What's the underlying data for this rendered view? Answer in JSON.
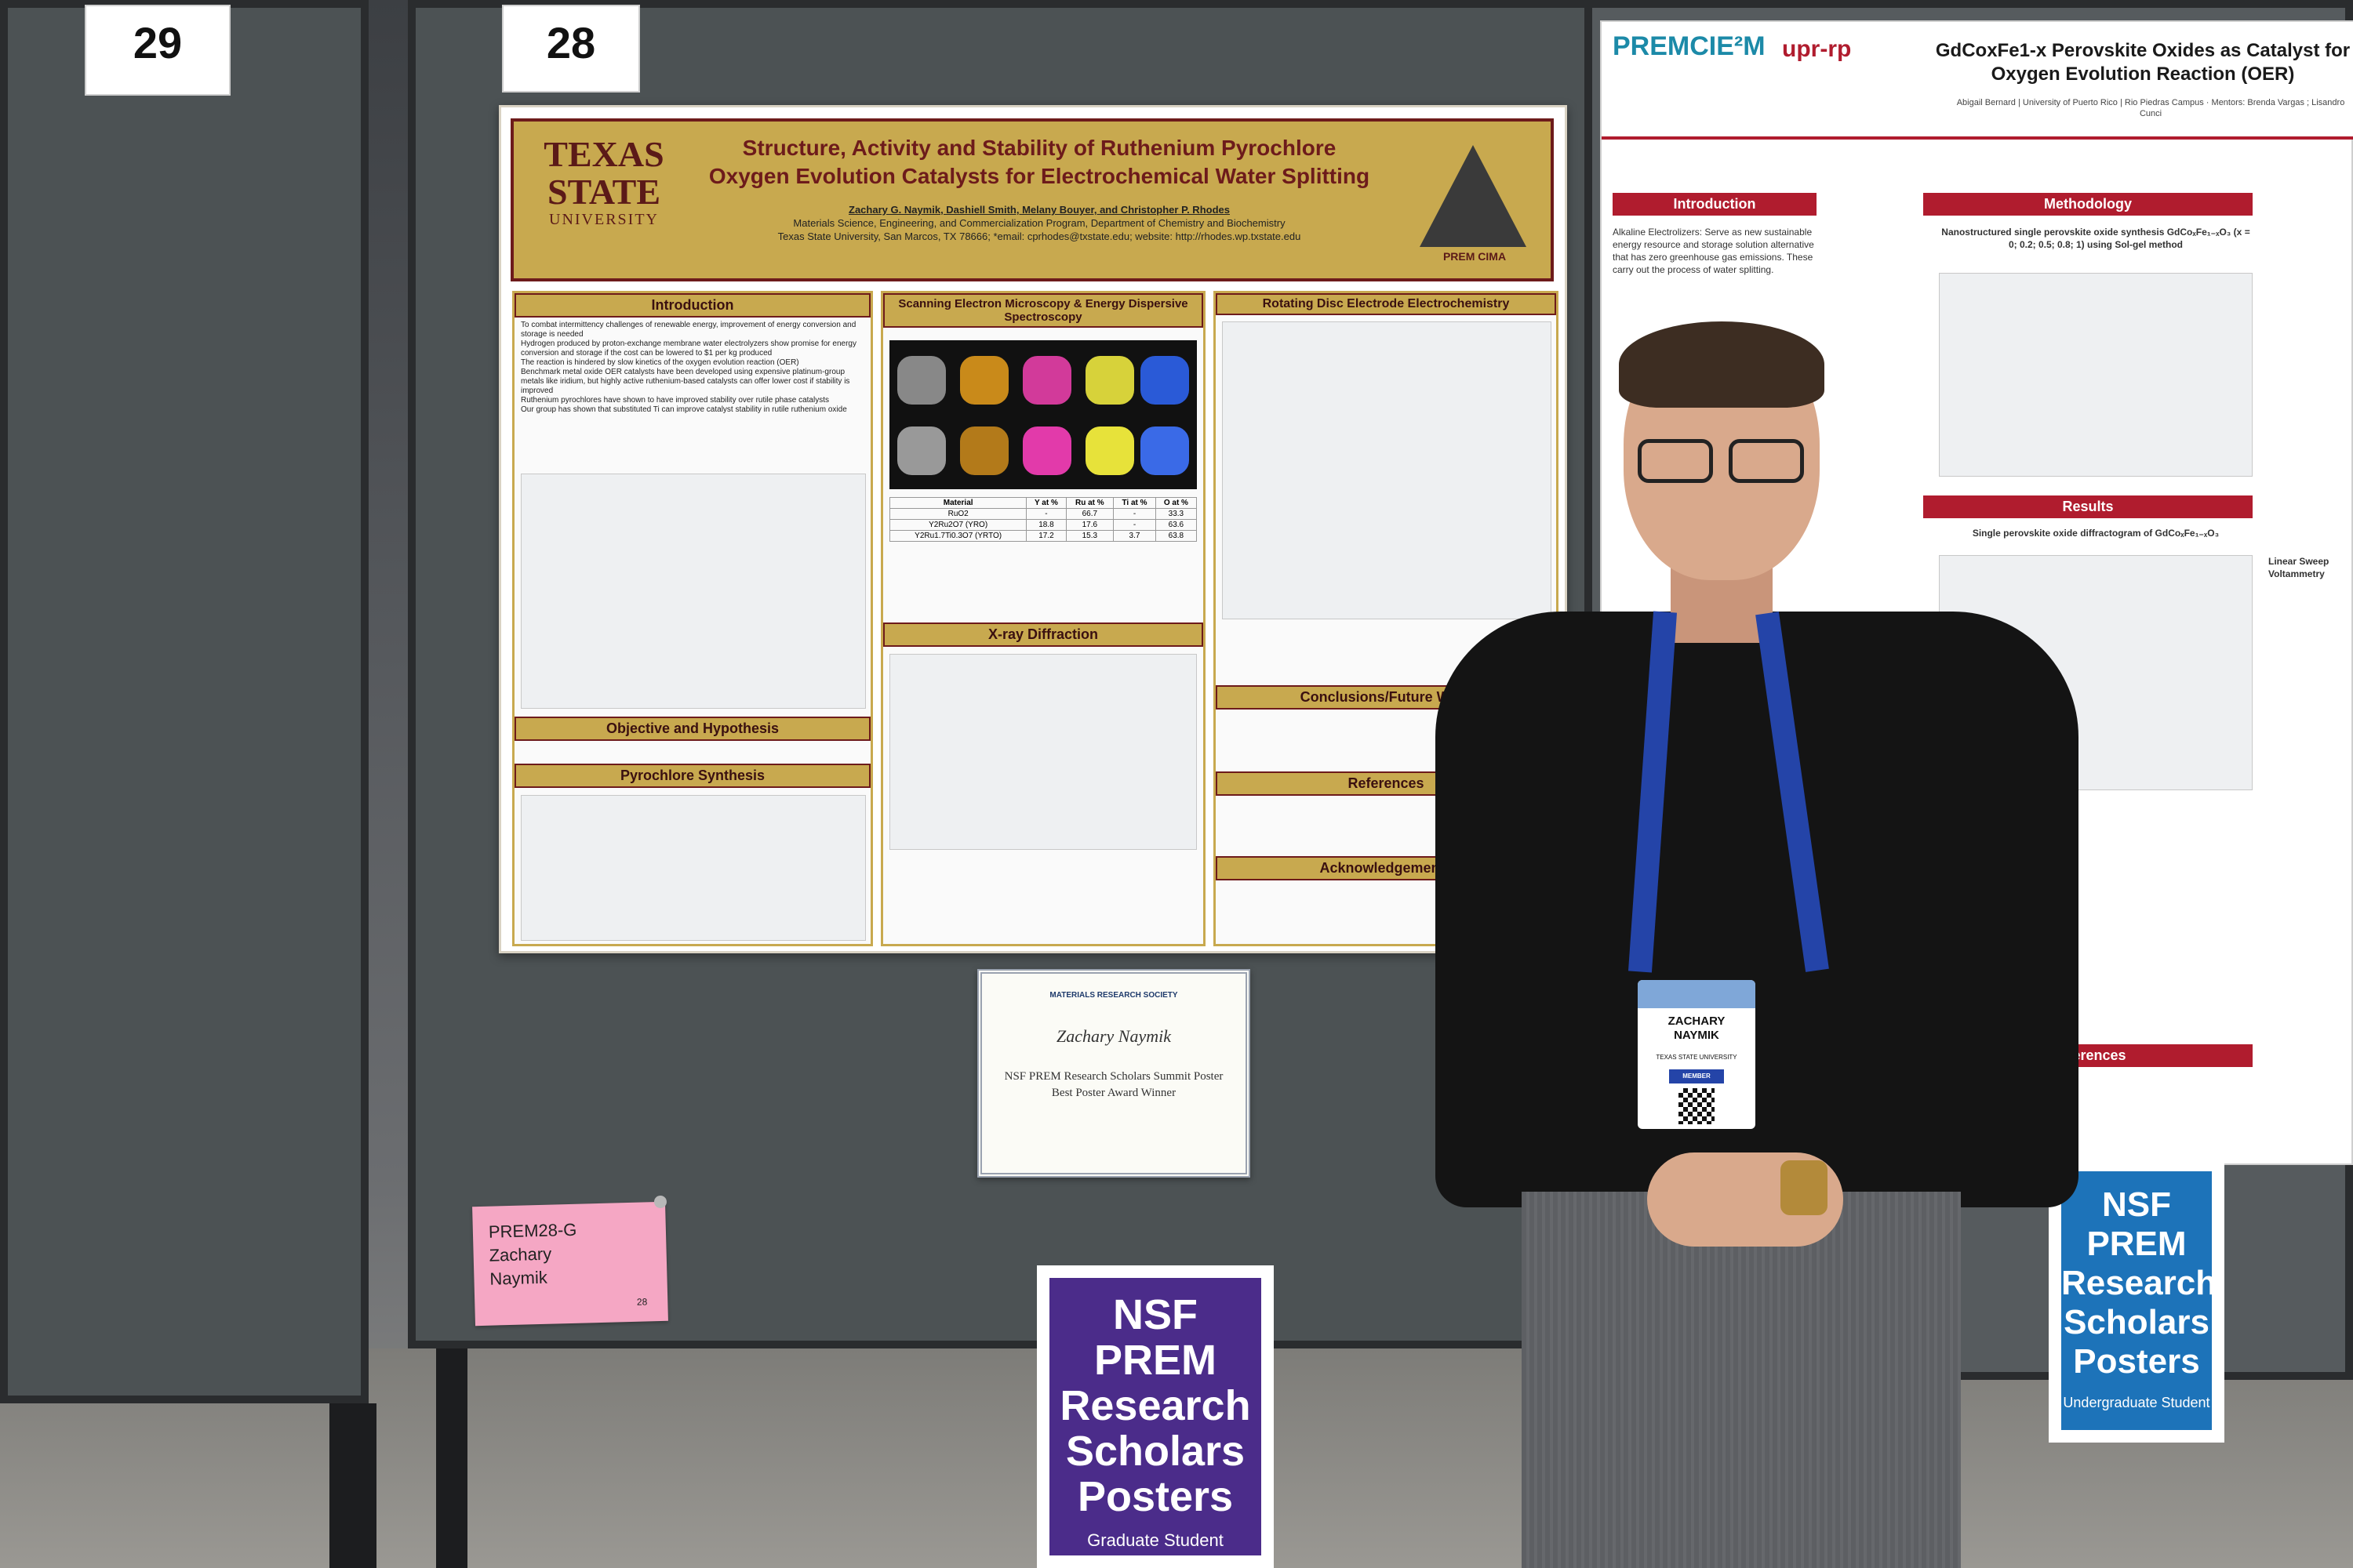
{
  "booths": {
    "left_number": "29",
    "main_number": "28"
  },
  "main_poster": {
    "university": {
      "line1": "TEXAS",
      "line2": "STATE",
      "line3": "UNIVERSITY"
    },
    "title_line1": "Structure, Activity and Stability of Ruthenium Pyrochlore",
    "title_line2": "Oxygen Evolution Catalysts for Electrochemical Water Splitting",
    "authors": "Zachary G. Naymik, Dashiell Smith, Melany Bouyer, and Christopher P. Rhodes",
    "affiliation": "Materials Science, Engineering, and Commercialization Program, Department of Chemistry and Biochemistry",
    "address": "Texas State University, San Marcos, TX 78666; *email: cprhodes@txstate.edu; website: http://rhodes.wp.txstate.edu",
    "logo_label": "PREM  CIMA",
    "sections": {
      "introduction": "Introduction",
      "sem": "Scanning Electron Microscopy & Energy Dispersive Spectroscopy",
      "rde": "Rotating Disc Electrode Electrochemistry",
      "objective": "Objective and Hypothesis",
      "synthesis": "Pyrochlore Synthesis",
      "xrd": "X-ray Diffraction",
      "conclusions": "Conclusions/Future Work",
      "references": "References",
      "acknowledgements": "Acknowledgements"
    },
    "intro_bullets": [
      "To combat intermittency challenges of renewable energy, improvement of energy conversion and storage is needed",
      "Hydrogen produced by proton-exchange membrane water electrolyzers show promise for energy conversion and storage if the cost can be lowered to $1 per kg produced",
      "The reaction is hindered by slow kinetics of the oxygen evolution reaction (OER)",
      "Benchmark metal oxide OER catalysts have been developed using expensive platinum-group metals like iridium, but highly active ruthenium-based catalysts can offer lower cost if stability is improved",
      "Ruthenium pyrochlores have shown to have improved stability over rutile phase catalysts",
      "Our group has shown that substituted Ti can improve catalyst stability in rutile ruthenium oxide"
    ],
    "table": {
      "headers": [
        "Material",
        "Y at %",
        "Ru at %",
        "Ti at %",
        "O at %"
      ],
      "rows": [
        [
          "RuO2",
          "-",
          "66.7",
          "-",
          "33.3"
        ],
        [
          "Y2Ru2O7 (YRO)",
          "18.8",
          "17.6",
          "-",
          "63.6"
        ],
        [
          "Y2Ru1.7Ti0.3O7 (YRTO)",
          "17.2",
          "15.3",
          "3.7",
          "63.8"
        ]
      ]
    }
  },
  "certificate": {
    "org": "MATERIALS RESEARCH SOCIETY",
    "name": "Zachary Naymik",
    "line1": "NSF PREM Research Scholars Summit Poster",
    "line2": "Best Poster Award Winner"
  },
  "pink_label": {
    "id": "PREM28-G",
    "first": "Zachary",
    "last": "Naymik",
    "num": "28"
  },
  "nsf_grad": {
    "l1": "NSF",
    "l2": "PREM",
    "l3": "Research",
    "l4": "Scholars",
    "l5": "Posters",
    "sub": "Graduate Student",
    "color": "#4b2c8a"
  },
  "nsf_ug": {
    "l1": "NSF",
    "l2": "PREM",
    "l3": "Research",
    "l4": "Scholars",
    "l5": "Posters",
    "sub": "Undergraduate Student",
    "color": "#1d73b9"
  },
  "right_poster": {
    "logo1": "PREMCIE²M",
    "logo2": "upr-rp",
    "title": "GdCoxFe1-x Perovskite Oxides as Catalyst for Oxygen Evolution Reaction (OER)",
    "sub": "Abigail Bernard | University of Puerto Rico | Rio Piedras Campus · Mentors: Brenda Vargas ; Lisandro Cunci",
    "intro": "Introduction",
    "method": "Methodology",
    "results": "Results",
    "references": "References",
    "alkaline": "Alkaline Electrolizers: Serve as new sustainable energy resource and storage solution alternative that has zero greenhouse gas emissions. These carry out the process of water splitting.",
    "synthesis": "Nanostructured single perovskite oxide synthesis GdCoₓFe₁₋ₓO₃ (x = 0; 0.2; 0.5; 0.8; 1) using Sol-gel method",
    "diffractogram": "Single perovskite oxide diffractogram of GdCoₓFe₁₋ₓO₃",
    "lsv": "Linear Sweep Voltammetry"
  },
  "badge": {
    "first": "ZACHARY",
    "last": "NAYMIK",
    "org": "TEXAS STATE UNIVERSITY",
    "role": "MEMBER"
  }
}
